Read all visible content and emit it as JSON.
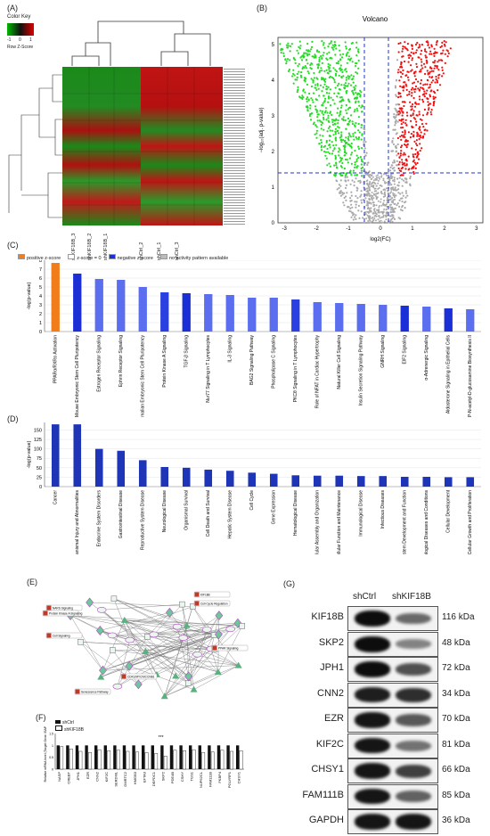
{
  "panels": {
    "A": "(A)",
    "B": "(B)",
    "C": "(C)",
    "D": "(D)",
    "E": "(E)",
    "F": "(F)",
    "G": "(G)"
  },
  "heatmap": {
    "color_key_title": "Color Key",
    "key_ticks": [
      "-1",
      "0",
      "1"
    ],
    "key_label": "Row Z-Score",
    "samples": [
      "shKIF18B_3",
      "shKIF18B_2",
      "shKIF18B_1",
      "shCtrl_2",
      "shCtrl_1",
      "shCtrl_3"
    ]
  },
  "volcano": {
    "title": "Volcano",
    "xlabel": "log2(FC)",
    "ylabel": "−log₁₀(adj. p-value)",
    "xticks": [
      "-3",
      "-2",
      "-1",
      "0",
      "1",
      "2",
      "3"
    ],
    "yticks": [
      "0",
      "1",
      "2",
      "3",
      "4",
      "5"
    ],
    "colors": {
      "down": "#22dd22",
      "up": "#ee1111",
      "ns": "#aaaaaa",
      "threshold": "#2233cc"
    }
  },
  "pathways": {
    "legend": [
      {
        "label": "positive z-score",
        "color": "#f07d1a"
      },
      {
        "label": "z-score = 0",
        "color": "#ffffff"
      },
      {
        "label": "negative z-score",
        "color": "#1a2fd6"
      },
      {
        "label": "no activity pattern available",
        "color": "#bbbbbb"
      }
    ],
    "ylabel": "-log(p-value)"
  },
  "chart_data": [
    {
      "type": "bar",
      "ylabel": "-log(p-value)",
      "ylim": [
        0,
        8
      ],
      "yticks": [
        0,
        1,
        2,
        3,
        4,
        5,
        6,
        7,
        8
      ],
      "categories": [
        "PPARα/RXRα Activation",
        "Mouse Embryonic Stem Cell Pluripotency",
        "Estrogen Receptor Signaling",
        "Ephrin Receptor Signaling",
        "Role of NANOG in Mammalian Embryonic Stem Cell Pluripotency",
        "Protein Kinase A Signaling",
        "TGF-β Signaling",
        "Nur77 Signaling in T Lymphocytes",
        "IL-3 Signaling",
        "BAG2 Signaling Pathway",
        "Phospholipase C Signaling",
        "PKCθ Signaling in T Lymphocytes",
        "Role of NFAT in Cardiac Hypertrophy",
        "Natural Killer Cell Signaling",
        "Insulin Secretion Signaling Pathway",
        "GNRH Signaling",
        "EIF2 Signaling",
        "α-Adrenergic Signaling",
        "Aldosterone Signaling in Epithelial Cells",
        "UDP-N-acetyl-D-glucosamine Biosynthesis II"
      ],
      "values": [
        7.7,
        6.5,
        5.9,
        5.8,
        5.0,
        4.4,
        4.3,
        4.2,
        4.1,
        3.8,
        3.8,
        3.6,
        3.3,
        3.2,
        3.1,
        3.0,
        2.9,
        2.8,
        2.6,
        2.5
      ],
      "bar_colors": [
        "#f07d1a",
        "#1a2fd6",
        "#5b6ef0",
        "#5b6ef0",
        "#5b6ef0",
        "#2a40e0",
        "#1a2fd6",
        "#5b6ef0",
        "#5b6ef0",
        "#5b6ef0",
        "#5b6ef0",
        "#2a40e0",
        "#5b6ef0",
        "#5b6ef0",
        "#5b6ef0",
        "#5b6ef0",
        "#1a2fd6",
        "#5b6ef0",
        "#1a2fd6",
        "#5b6ef0"
      ]
    },
    {
      "type": "bar",
      "ylabel": "-log(p-value)",
      "ylim": [
        0,
        170
      ],
      "yticks": [
        0,
        25,
        50,
        75,
        100,
        125,
        150
      ],
      "categories": [
        "Cancer",
        "Organismal Injury and Abnormalities",
        "Endocrine System Disorders",
        "Gastrointestinal Disease",
        "Reproductive System Disease",
        "Neurological Disease",
        "Organismal Survival",
        "Cell Death and Survival",
        "Hepatic System Disease",
        "Cell Cycle",
        "Gene Expression",
        "Hematological Disease",
        "Cellular Assembly and Organization",
        "Cellular Function and Maintenance",
        "Immunological Disease",
        "Infectious Diseases",
        "Cardiovascular System Development and Function",
        "Dermatological Diseases and Conditions",
        "Cellular Development",
        "Cellular Growth and Proliferation"
      ],
      "values": [
        165,
        165,
        100,
        95,
        70,
        52,
        50,
        45,
        42,
        37,
        34,
        30,
        29,
        29,
        28,
        28,
        26,
        26,
        25,
        25
      ],
      "color": "#1f35b8"
    },
    {
      "type": "bar",
      "ylabel": "Relative mRNA level (Target Gene /GAPDH)",
      "ylim": [
        0,
        1.5
      ],
      "yticks": [
        0,
        0.5,
        1.0,
        1.5
      ],
      "categories": [
        "NASP",
        "CREBT",
        "JPH1",
        "EZR",
        "CNN2",
        "KIF2C",
        "SERDML",
        "DMRTC2",
        "HMGB3",
        "EFTA3",
        "DEPDC1",
        "SKP2",
        "PDE4B",
        "CSHY",
        "TGS1",
        "NUP62CL",
        "FAM111B",
        "FKBP4",
        "PGLYRP1",
        "CHSY1"
      ],
      "series": [
        {
          "name": "shCtrl",
          "values": [
            1,
            1,
            1,
            1,
            1,
            1,
            1,
            1,
            1,
            1,
            1,
            1,
            1,
            1,
            1,
            1,
            1,
            1,
            1,
            1
          ]
        },
        {
          "name": "shKIF18B",
          "values": [
            0.95,
            0.85,
            0.75,
            0.7,
            0.82,
            0.78,
            0.8,
            0.75,
            0.72,
            0.7,
            0.66,
            0.55,
            0.8,
            0.78,
            0.82,
            0.7,
            0.72,
            0.8,
            0.75,
            0.78
          ]
        }
      ]
    }
  ],
  "network": {
    "labels": [
      "NARS Signaling",
      "Cell Signaling",
      "Cell Cycle Regulation",
      "Protein Kinase A Signaling",
      "PPAR Signaling",
      "Senescence Pathway",
      "CDK1/MYCN/CCNB1",
      "KIF18B"
    ]
  },
  "qpcr": {
    "legend": [
      "shCtrl",
      "shKIF18B"
    ],
    "sig": "***",
    "ylabel": "Relative mRNA level (Target Gene /GAPDH)"
  },
  "western": {
    "headers": [
      "shCtrl",
      "shKIF18B"
    ],
    "rows": [
      {
        "name": "KIF18B",
        "kda": "116 kDa",
        "ctrl": 1.0,
        "kd": 0.45
      },
      {
        "name": "SKP2",
        "kda": "48 kDa",
        "ctrl": 1.0,
        "kd": 0.3
      },
      {
        "name": "JPH1",
        "kda": "72 kDa",
        "ctrl": 1.0,
        "kd": 0.6
      },
      {
        "name": "CNN2",
        "kda": "34 kDa",
        "ctrl": 0.9,
        "kd": 0.8
      },
      {
        "name": "EZR",
        "kda": "70 kDa",
        "ctrl": 0.95,
        "kd": 0.55
      },
      {
        "name": "KIF2C",
        "kda": "81 kDa",
        "ctrl": 0.95,
        "kd": 0.4
      },
      {
        "name": "CHSY1",
        "kda": "66 kDa",
        "ctrl": 0.95,
        "kd": 0.7
      },
      {
        "name": "FAM111B",
        "kda": "85 kDa",
        "ctrl": 0.95,
        "kd": 0.5
      },
      {
        "name": "GAPDH",
        "kda": "36 kDa",
        "ctrl": 0.95,
        "kd": 0.95
      }
    ]
  }
}
